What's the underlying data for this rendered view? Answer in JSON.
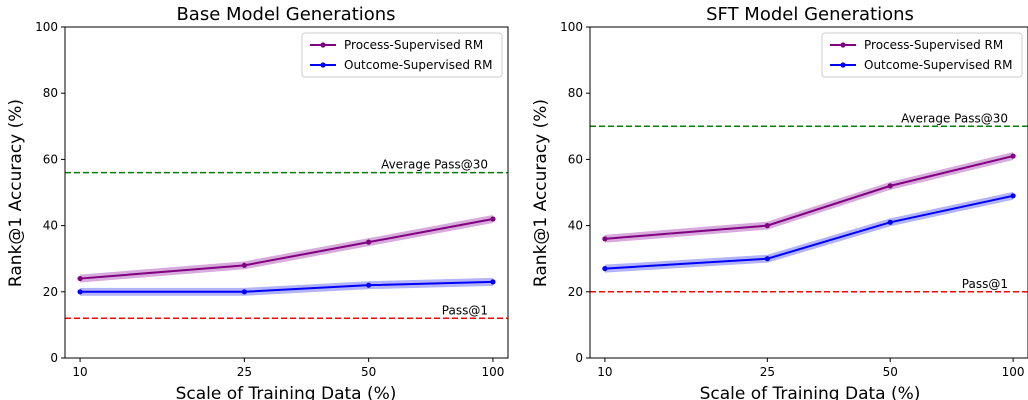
{
  "chart_data": [
    {
      "type": "line",
      "title": "Base Model Generations",
      "xlabel": "Scale of Training Data (%)",
      "ylabel": "Rank@1 Accuracy (%)",
      "x": [
        10,
        25,
        50,
        100
      ],
      "x_scale": "log",
      "x_ticks": [
        "10",
        "25",
        "50",
        "100"
      ],
      "ylim": [
        0,
        100
      ],
      "y_ticks": [
        "0",
        "20",
        "40",
        "60",
        "80",
        "100"
      ],
      "grid": false,
      "legend_position": "top-right",
      "series": [
        {
          "name": "Process-Supervised RM",
          "color": "#800080",
          "band_color": "#c98fd0",
          "values": [
            24,
            28,
            35,
            42
          ],
          "band": 1.2
        },
        {
          "name": "Outcome-Supervised RM",
          "color": "#0000ff",
          "band_color": "#9999f5",
          "values": [
            20,
            20,
            22,
            23
          ],
          "band": 1.2
        }
      ],
      "reference_lines": [
        {
          "label": "Average Pass@30",
          "value": 56,
          "color": "#008000"
        },
        {
          "label": "Pass@1",
          "value": 12,
          "color": "#ff0000"
        }
      ]
    },
    {
      "type": "line",
      "title": "SFT Model Generations",
      "xlabel": "Scale of Training Data (%)",
      "ylabel": "Rank@1 Accuracy (%)",
      "x": [
        10,
        25,
        50,
        100
      ],
      "x_scale": "log",
      "x_ticks": [
        "10",
        "25",
        "50",
        "100"
      ],
      "ylim": [
        0,
        100
      ],
      "y_ticks": [
        "0",
        "20",
        "40",
        "60",
        "80",
        "100"
      ],
      "grid": false,
      "legend_position": "top-right",
      "series": [
        {
          "name": "Process-Supervised RM",
          "color": "#800080",
          "band_color": "#c98fd0",
          "values": [
            36,
            40,
            52,
            61
          ],
          "band": 1.2
        },
        {
          "name": "Outcome-Supervised RM",
          "color": "#0000ff",
          "band_color": "#9999f5",
          "values": [
            27,
            30,
            41,
            49
          ],
          "band": 1.2
        }
      ],
      "reference_lines": [
        {
          "label": "Average Pass@30",
          "value": 70,
          "color": "#008000"
        },
        {
          "label": "Pass@1",
          "value": 20,
          "color": "#ff0000"
        }
      ]
    }
  ]
}
